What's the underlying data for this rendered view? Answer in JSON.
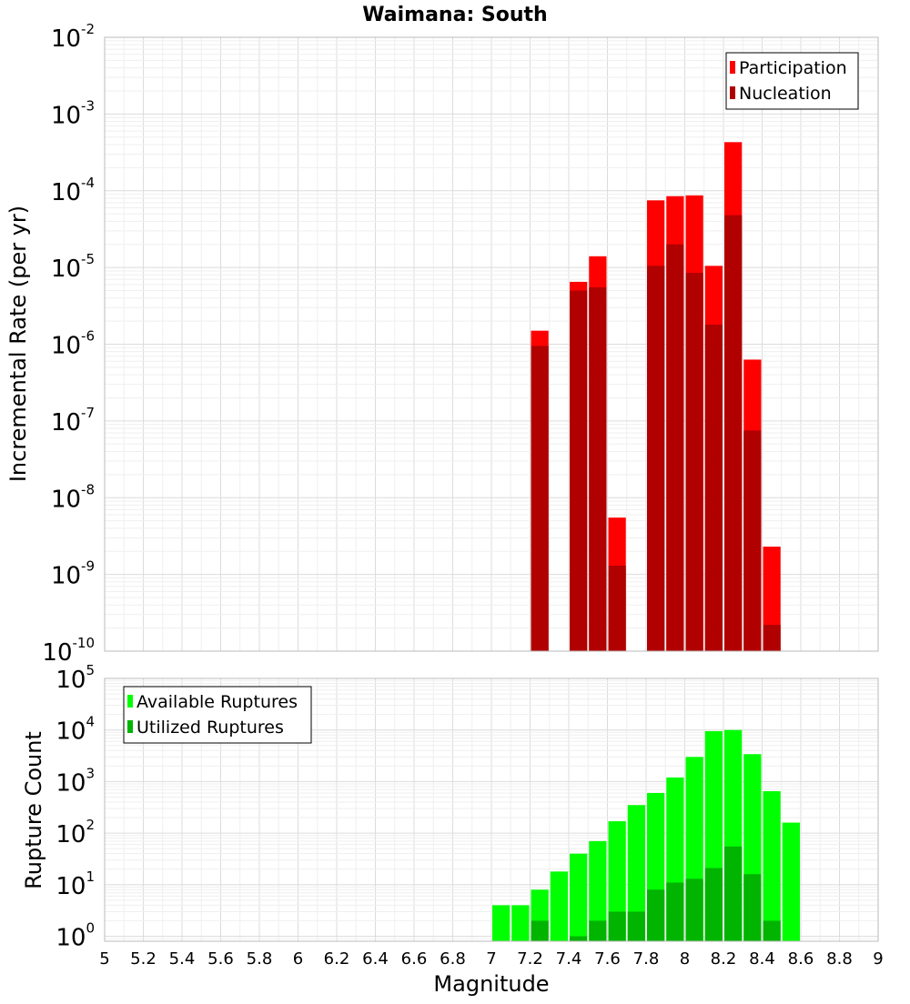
{
  "chart_data": [
    {
      "type": "bar",
      "title": "Waimana: South",
      "xlabel": "",
      "ylabel": "Incremental Rate (per yr)",
      "xlim": [
        5,
        9
      ],
      "ylim": [
        1e-10,
        0.01
      ],
      "yscale": "log",
      "grid": true,
      "legend_position": "top-right",
      "yticks": [
        {
          "exp": "-10",
          "value": 1e-10
        },
        {
          "exp": "-9",
          "value": 1e-09
        },
        {
          "exp": "-8",
          "value": 1e-08
        },
        {
          "exp": "-7",
          "value": 1e-07
        },
        {
          "exp": "-6",
          "value": 1e-06
        },
        {
          "exp": "-5",
          "value": 1e-05
        },
        {
          "exp": "-4",
          "value": 0.0001
        },
        {
          "exp": "-3",
          "value": 0.001
        },
        {
          "exp": "-2",
          "value": 0.01
        }
      ],
      "series": [
        {
          "name": "Participation",
          "color": "#ff0000",
          "x": [
            7.25,
            7.45,
            7.55,
            7.65,
            7.85,
            7.95,
            8.05,
            8.15,
            8.25,
            8.35,
            8.45
          ],
          "values": [
            1.5e-06,
            6.5e-06,
            1.4e-05,
            5.5e-09,
            7.5e-05,
            8.5e-05,
            8.7e-05,
            1.05e-05,
            0.00043,
            6.3e-07,
            2.3e-09
          ]
        },
        {
          "name": "Nucleation",
          "color": "#b00000",
          "x": [
            7.25,
            7.45,
            7.55,
            7.65,
            7.85,
            7.95,
            8.05,
            8.15,
            8.25,
            8.35,
            8.45
          ],
          "values": [
            9.5e-07,
            5e-06,
            5.5e-06,
            1.3e-09,
            1.05e-05,
            2e-05,
            8.5e-06,
            1.8e-06,
            4.8e-05,
            7.5e-08,
            2.2e-10
          ]
        }
      ]
    },
    {
      "type": "bar",
      "title": "",
      "xlabel": "Magnitude",
      "ylabel": "Rupture Count",
      "xlim": [
        5,
        9
      ],
      "ylim": [
        0.8,
        100000.0
      ],
      "yscale": "log",
      "grid": true,
      "legend_position": "top-left",
      "yticks": [
        {
          "exp": "0",
          "value": 1
        },
        {
          "exp": "1",
          "value": 10
        },
        {
          "exp": "2",
          "value": 100
        },
        {
          "exp": "3",
          "value": 1000
        },
        {
          "exp": "4",
          "value": 10000
        },
        {
          "exp": "5",
          "value": 100000
        }
      ],
      "xticks": [
        "5",
        "5.2",
        "5.4",
        "5.6",
        "5.8",
        "6",
        "6.2",
        "6.4",
        "6.6",
        "6.8",
        "7",
        "7.2",
        "7.4",
        "7.6",
        "7.8",
        "8",
        "8.2",
        "8.4",
        "8.6",
        "8.8",
        "9"
      ],
      "series": [
        {
          "name": "Available Ruptures",
          "color": "#00ff00",
          "x": [
            7.05,
            7.15,
            7.25,
            7.35,
            7.45,
            7.55,
            7.65,
            7.75,
            7.85,
            7.95,
            8.05,
            8.15,
            8.25,
            8.35,
            8.45,
            8.55
          ],
          "values": [
            4,
            4,
            8,
            18,
            40,
            70,
            170,
            350,
            600,
            1200,
            3000,
            9500,
            10000,
            3400,
            650,
            160
          ]
        },
        {
          "name": "Utilized Ruptures",
          "color": "#00b400",
          "x": [
            7.25,
            7.45,
            7.55,
            7.65,
            7.75,
            7.85,
            7.95,
            8.05,
            8.15,
            8.25,
            8.35,
            8.45
          ],
          "values": [
            2,
            1,
            2,
            3,
            3,
            8,
            11,
            13,
            21,
            55,
            16,
            2
          ]
        }
      ]
    }
  ]
}
